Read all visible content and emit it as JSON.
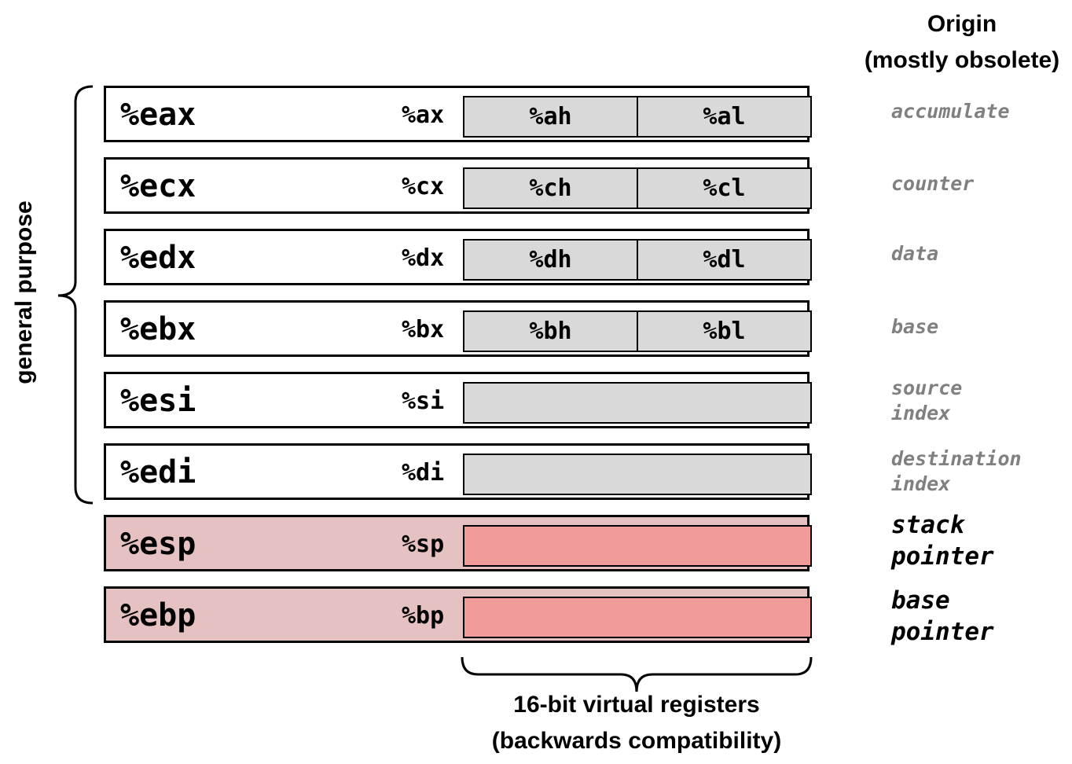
{
  "origin_header": {
    "line1": "Origin",
    "line2": "(mostly obsolete)"
  },
  "general_purpose_label": "general purpose",
  "registers": [
    {
      "name": "%eax",
      "reg16": "%ax",
      "high": "%ah",
      "low": "%al",
      "origin": "accumulate",
      "special": false
    },
    {
      "name": "%ecx",
      "reg16": "%cx",
      "high": "%ch",
      "low": "%cl",
      "origin": "counter",
      "special": false
    },
    {
      "name": "%edx",
      "reg16": "%dx",
      "high": "%dh",
      "low": "%dl",
      "origin": "data",
      "special": false
    },
    {
      "name": "%ebx",
      "reg16": "%bx",
      "high": "%bh",
      "low": "%bl",
      "origin": "base",
      "special": false
    },
    {
      "name": "%esi",
      "reg16": "%si",
      "high": "",
      "low": "",
      "origin": "source\nindex",
      "special": false
    },
    {
      "name": "%edi",
      "reg16": "%di",
      "high": "",
      "low": "",
      "origin": "destination\nindex",
      "special": false
    },
    {
      "name": "%esp",
      "reg16": "%sp",
      "high": "",
      "low": "",
      "origin": "stack\npointer",
      "special": true
    },
    {
      "name": "%ebp",
      "reg16": "%bp",
      "high": "",
      "low": "",
      "origin": "base\npointer",
      "special": true
    }
  ],
  "bottom_label": {
    "line1": "16-bit virtual registers",
    "line2": "(backwards compatibility)"
  },
  "colors": {
    "sub_register_fill": "#d9d9d9",
    "special_register_fill": "#e6c1c2",
    "special_sub_register_fill": "#f19c9b",
    "origin_text_gray": "#808080"
  }
}
